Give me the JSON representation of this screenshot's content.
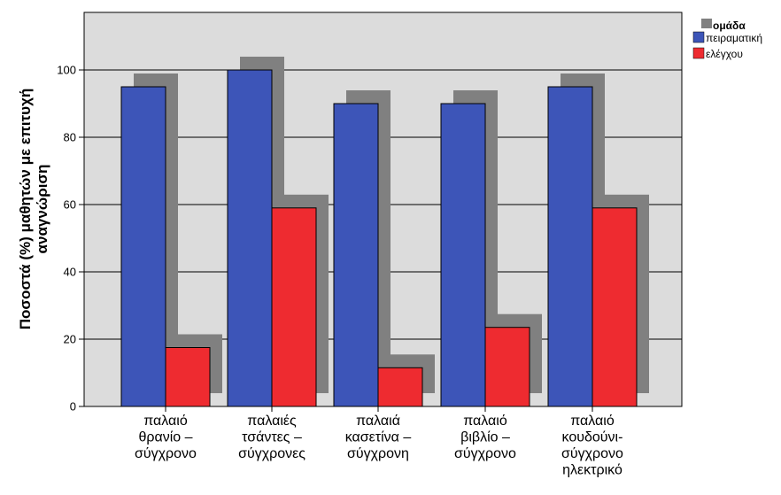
{
  "chart_data": {
    "type": "bar",
    "ylabel": [
      "Ποσοστά (%) μαθητών με επιτυχή",
      "αναγνώριση"
    ],
    "ylim": [
      0,
      115
    ],
    "yticks": [
      0,
      20,
      40,
      60,
      80,
      100
    ],
    "grid": true,
    "legend_position": "top-right",
    "legend_title": "ομάδα",
    "categories": [
      [
        "παλαιό",
        "θρανίο –",
        "σύγχρονο"
      ],
      [
        "παλαιές",
        "τσάντες –",
        "σύγχρονες"
      ],
      [
        "παλαιά",
        "κασετίνα –",
        "σύγχρονη"
      ],
      [
        "παλαιό",
        "βιβλίο –",
        "σύγχρονο"
      ],
      [
        "παλαιό",
        "κουδούνι-",
        "σύγχρονο",
        "ηλεκτρικό"
      ]
    ],
    "series": [
      {
        "name": "πειραματική",
        "color": "#3d55b8",
        "values": [
          95,
          100,
          90,
          90,
          95
        ]
      },
      {
        "name": "ελέγχου",
        "color": "#ee2b30",
        "values": [
          17.5,
          59,
          11.5,
          23.5,
          59
        ]
      }
    ],
    "shadow_color": "#808080",
    "plot_background": "#dcdcdc"
  }
}
